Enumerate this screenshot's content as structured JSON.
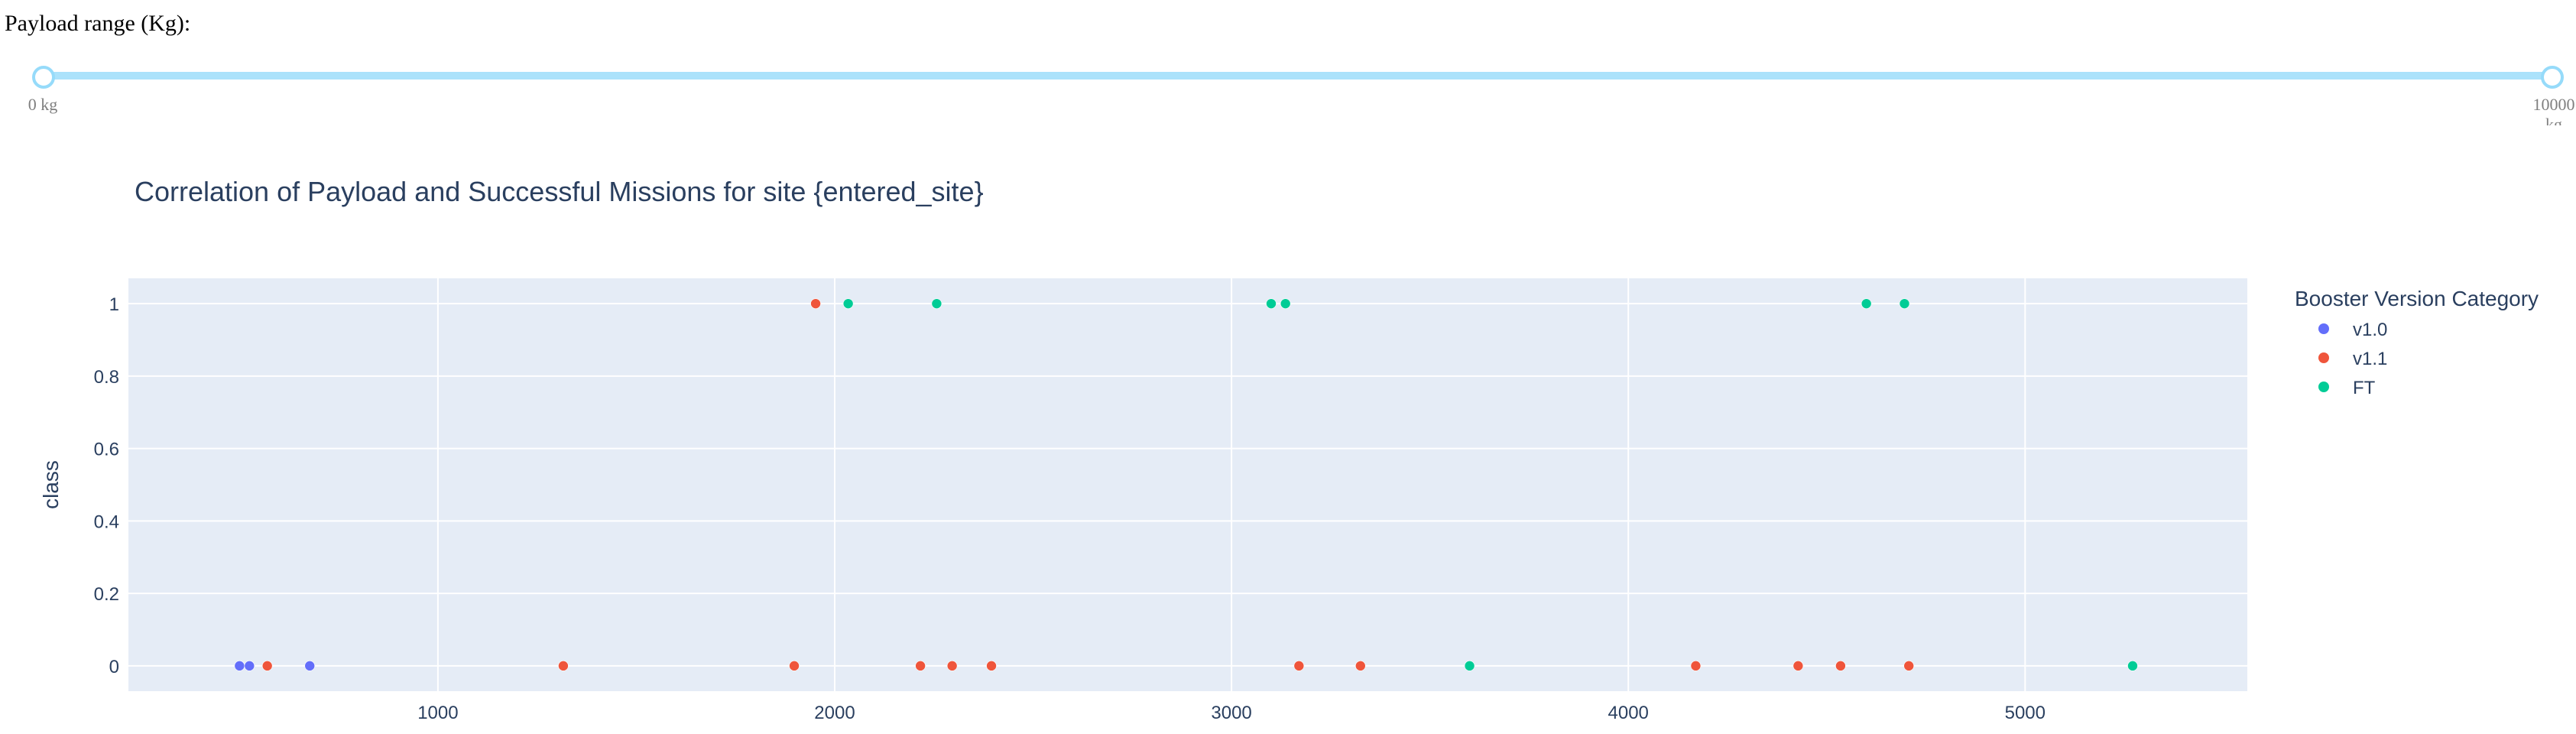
{
  "slider": {
    "label": "Payload range (Kg):",
    "min_mark": "0 kg",
    "max_mark_line1": "10000",
    "max_mark_line2": "kg",
    "value_low": 0,
    "value_high": 10000
  },
  "chart_data": {
    "type": "scatter",
    "title": "Correlation of Payload and Successful Missions for site {entered_site}",
    "xlabel": "",
    "ylabel": "class",
    "xlim": [
      220,
      5560
    ],
    "ylim": [
      -0.07,
      1.07
    ],
    "x_ticks": [
      1000,
      2000,
      3000,
      4000,
      5000
    ],
    "y_ticks": [
      0,
      0.2,
      0.4,
      0.6,
      0.8,
      1
    ],
    "grid": true,
    "legend_title": "Booster Version Category",
    "legend_position": "right",
    "series": [
      {
        "name": "v1.0",
        "color": "#636efa",
        "points": [
          [
            500,
            0
          ],
          [
            525,
            0
          ],
          [
            677,
            0
          ]
        ]
      },
      {
        "name": "v1.1",
        "color": "#ef553b",
        "points": [
          [
            570,
            0
          ],
          [
            1316,
            0
          ],
          [
            1898,
            0
          ],
          [
            1952,
            1
          ],
          [
            2216,
            0
          ],
          [
            2296,
            0
          ],
          [
            2395,
            0
          ],
          [
            3170,
            0
          ],
          [
            3325,
            0
          ],
          [
            4170,
            0
          ],
          [
            4428,
            0
          ],
          [
            4535,
            0
          ],
          [
            4707,
            0
          ]
        ]
      },
      {
        "name": "FT",
        "color": "#00cc96",
        "points": [
          [
            2034,
            1
          ],
          [
            2257,
            1
          ],
          [
            3100,
            1
          ],
          [
            3136,
            1
          ],
          [
            3600,
            0
          ],
          [
            4600,
            1
          ],
          [
            4696,
            1
          ],
          [
            5271,
            0
          ]
        ]
      }
    ]
  }
}
